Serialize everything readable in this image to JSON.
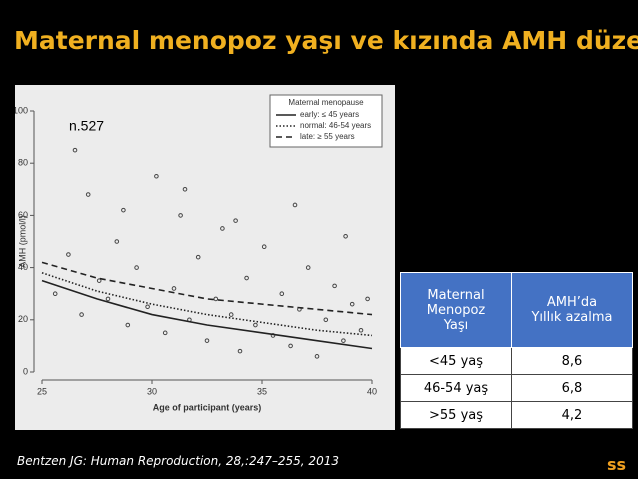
{
  "title": "Maternal menopoz yaşı ve kızında AMH düzeyi",
  "chart_data": {
    "type": "line",
    "annotation": "n.527",
    "x_label": "Age of participant (years)",
    "y_label": "AMH (pmol/l)",
    "legend_title": "Maternal menopause",
    "xlim": [
      25,
      40
    ],
    "xticks": [
      25,
      30,
      35,
      40
    ],
    "ylim": [
      0,
      100
    ],
    "yticks": [
      0,
      20,
      40,
      60,
      80,
      100
    ],
    "x": [
      25,
      27.5,
      30,
      32.5,
      35,
      37.5,
      40
    ],
    "series": [
      {
        "name": "early: ≤ 45 years",
        "color": "#222222",
        "line_style": "solid",
        "values": [
          35,
          28,
          22,
          18,
          15,
          12,
          9
        ]
      },
      {
        "name": "normal: 46-54 years",
        "color": "#222222",
        "line_style": "dotted",
        "values": [
          38,
          31,
          26,
          22,
          19,
          16,
          14
        ]
      },
      {
        "name": "late: ≥ 55 years",
        "color": "#222222",
        "line_style": "dashed",
        "values": [
          42,
          36,
          32,
          28,
          26,
          24,
          22
        ]
      }
    ],
    "points": {
      "color": "#444444",
      "x": [
        25.6,
        26.2,
        26.8,
        27.1,
        27.6,
        28.0,
        28.4,
        28.9,
        29.3,
        29.8,
        30.2,
        30.6,
        31.0,
        31.3,
        31.7,
        32.1,
        32.5,
        32.9,
        33.2,
        33.6,
        34.0,
        34.3,
        34.7,
        35.1,
        35.5,
        35.9,
        36.3,
        36.7,
        37.1,
        37.5,
        37.9,
        38.3,
        38.7,
        39.1,
        39.5,
        39.8,
        26.5,
        28.7,
        31.5,
        33.8,
        36.5,
        38.8
      ],
      "y": [
        30,
        45,
        22,
        68,
        35,
        28,
        50,
        18,
        40,
        25,
        75,
        15,
        32,
        60,
        20,
        44,
        12,
        28,
        55,
        22,
        8,
        36,
        18,
        48,
        14,
        30,
        10,
        24,
        40,
        6,
        20,
        33,
        12,
        26,
        16,
        28,
        85,
        62,
        70,
        58,
        64,
        52
      ]
    }
  },
  "table": {
    "header": [
      "Maternal\nMenopoz\nYaşı",
      "AMH’da\nYıllık azalma"
    ],
    "rows": [
      [
        "<45 yaş",
        "8,6"
      ],
      [
        "46-54 yaş",
        "6,8"
      ],
      [
        ">55 yaş",
        "4,2"
      ]
    ]
  },
  "footer": "Bentzen JG: Human Reproduction, 28,:247–255, 2013",
  "logo": "ss"
}
